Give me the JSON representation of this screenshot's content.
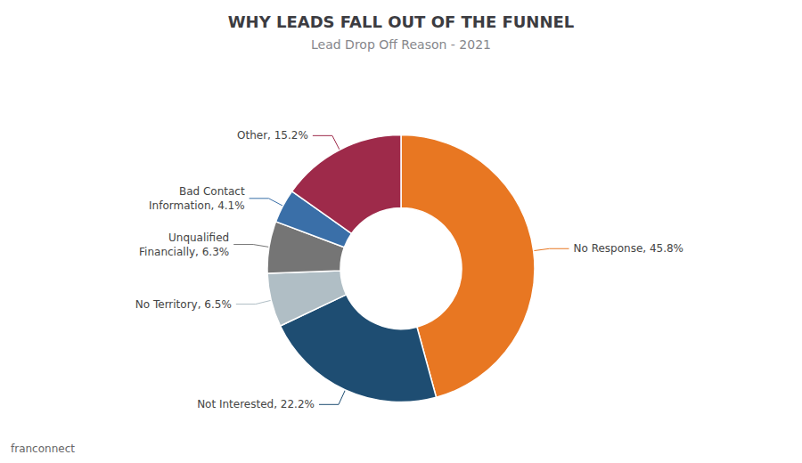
{
  "chart_data": {
    "type": "pie",
    "title": "WHY LEADS FALL OUT OF THE FUNNEL",
    "subtitle": "Lead Drop Off Reason - 2021",
    "categories": [
      "No Response",
      "Not Interested",
      "No Territory",
      "Unqualified Financially",
      "Bad Contact Information",
      "Other"
    ],
    "values": [
      45.8,
      22.2,
      6.5,
      6.3,
      4.1,
      15.2
    ],
    "value_labels": [
      "No Response, 45.8%",
      "Not Interested, 22.2%",
      "No Territory, 6.5%",
      "Unqualified\nFinancially, 6.3%",
      "Bad Contact\nInformation, 4.1%",
      "Other, 15.2%"
    ],
    "colors": [
      "#E87722",
      "#1E4D72",
      "#B0BEC5",
      "#757575",
      "#3A6FA8",
      "#9E2A4A"
    ],
    "annotations": [
      "franconnect"
    ]
  }
}
